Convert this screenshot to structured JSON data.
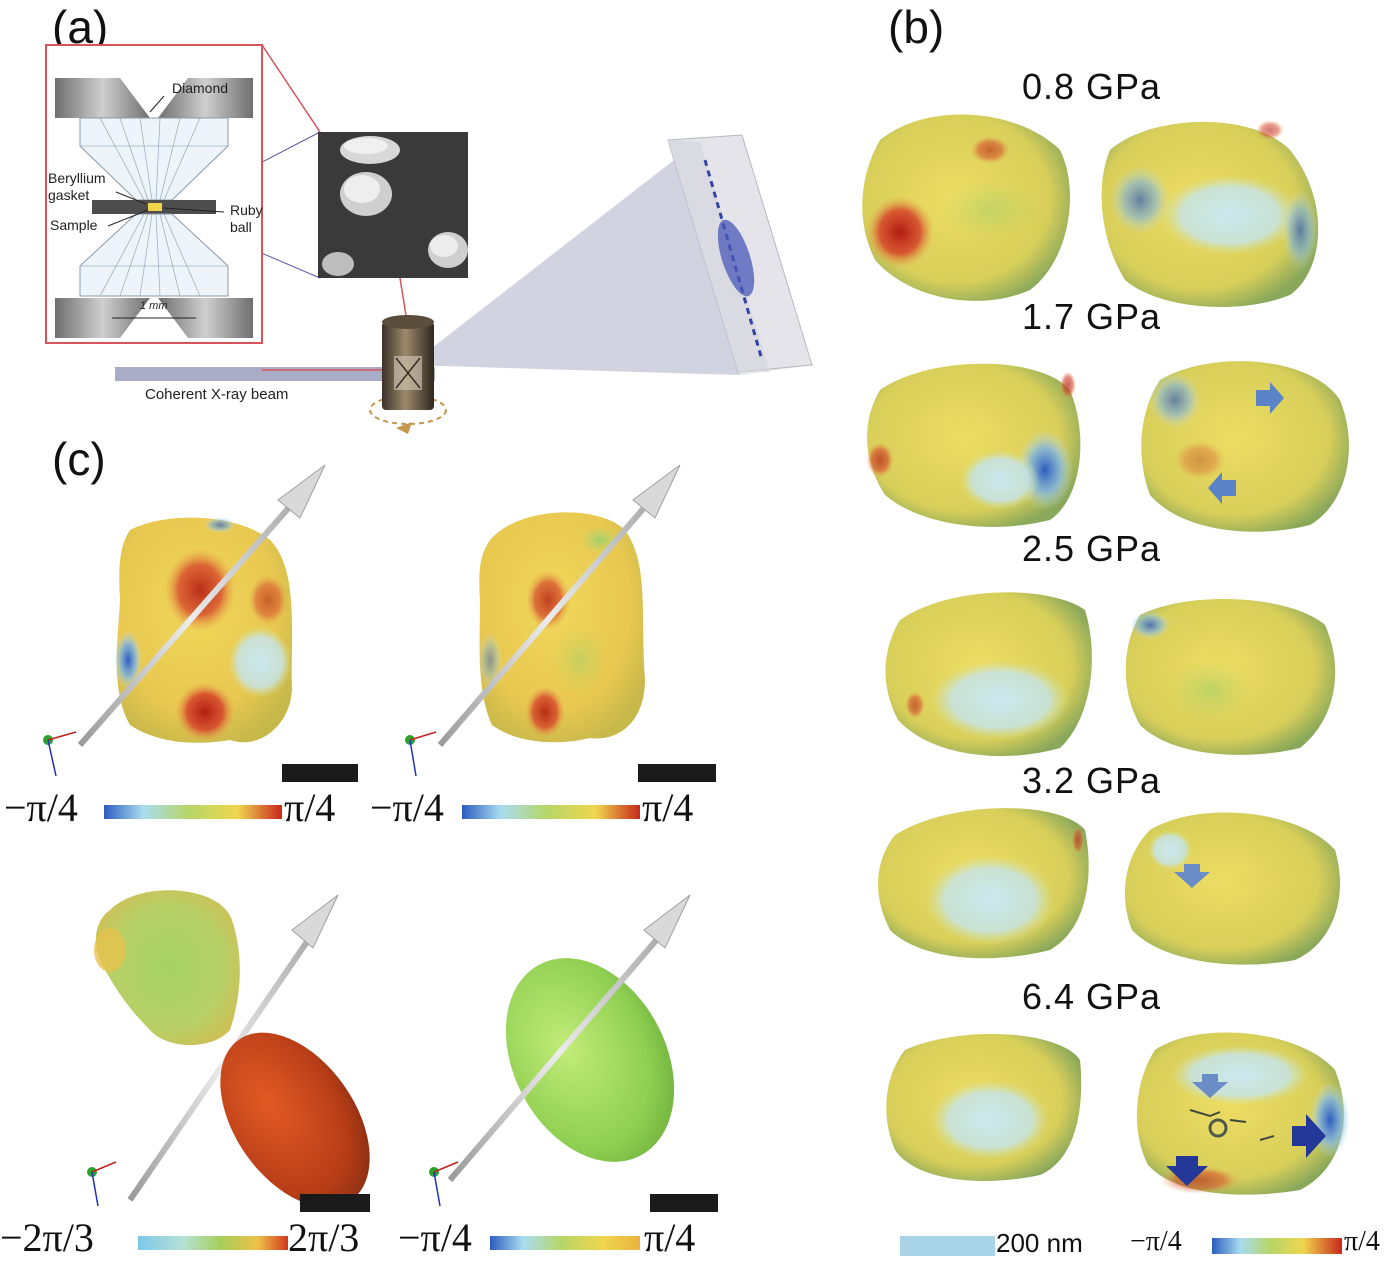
{
  "panels": {
    "a": "(a)",
    "b": "(b)",
    "c": "(c)"
  },
  "panel_a": {
    "diamond_label": "Diamond",
    "beryllium_label": "Beryllium\ngasket",
    "sample_label": "Sample",
    "ruby_label": "Ruby\nball",
    "scale_label": "1 mm",
    "beam_label": "Coherent X-ray beam"
  },
  "panel_b": {
    "pressures": [
      "0.8 GPa",
      "1.7 GPa",
      "2.5 GPa",
      "3.2 GPa",
      "6.4 GPa"
    ],
    "scale_label": "200 nm",
    "colorbar_min": "−π/4",
    "colorbar_max": "π/4"
  },
  "panel_c": {
    "colorbars": [
      {
        "min": "−π/4",
        "max": "π/4"
      },
      {
        "min": "−π/4",
        "max": "π/4"
      },
      {
        "min": "−2π/3",
        "max": "2π/3"
      },
      {
        "min": "−π/4",
        "max": "π/4"
      }
    ]
  },
  "colors": {
    "phase_low": "#2b5fb8",
    "phase_mid": "#9fd16a",
    "phase_high": "#c9271a",
    "base_yellow": "#e8d657",
    "frame_red": "#d9535a"
  }
}
